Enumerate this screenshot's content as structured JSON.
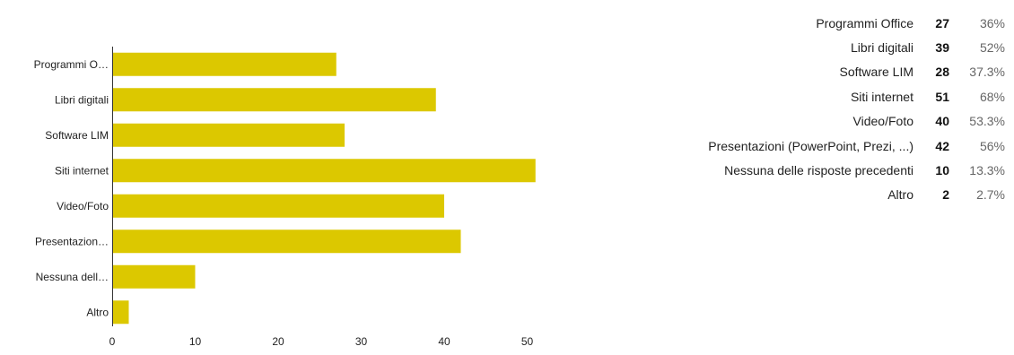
{
  "chart_data": {
    "type": "bar",
    "orientation": "horizontal",
    "categories": [
      "Programmi O…",
      "Libri digitali",
      "Software LIM",
      "Siti internet",
      "Video/Foto",
      "Presentazion…",
      "Nessuna dell…",
      "Altro"
    ],
    "values": [
      27,
      39,
      28,
      51,
      40,
      42,
      10,
      2
    ],
    "xlim": [
      0,
      55
    ],
    "xticks": [
      0,
      10,
      20,
      30,
      40,
      50
    ],
    "grid": false,
    "color": "#dcc800",
    "axis_color": "#333333"
  },
  "summary": [
    {
      "label": "Programmi Office",
      "count": "27",
      "percent": "36%"
    },
    {
      "label": "Libri digitali",
      "count": "39",
      "percent": "52%"
    },
    {
      "label": "Software LIM",
      "count": "28",
      "percent": "37.3%"
    },
    {
      "label": "Siti internet",
      "count": "51",
      "percent": "68%"
    },
    {
      "label": "Video/Foto",
      "count": "40",
      "percent": "53.3%"
    },
    {
      "label": "Presentazioni (PowerPoint, Prezi, ...)",
      "count": "42",
      "percent": "56%"
    },
    {
      "label": "Nessuna delle risposte precedenti",
      "count": "10",
      "percent": "13.3%"
    },
    {
      "label": "Altro",
      "count": "2",
      "percent": "2.7%"
    }
  ]
}
